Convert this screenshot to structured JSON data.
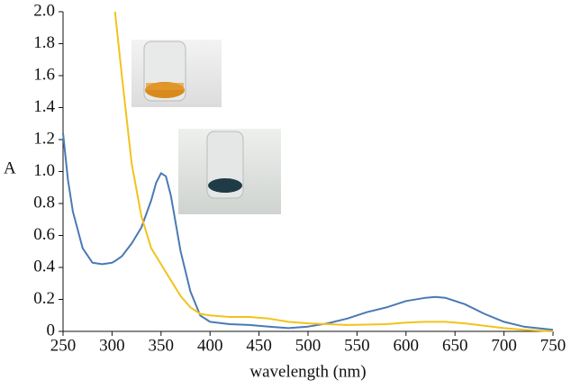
{
  "chart_data": {
    "type": "line",
    "xlabel": "wavelength (nm)",
    "ylabel": "A",
    "x": [
      250,
      255,
      260,
      270,
      280,
      290,
      300,
      303,
      310,
      320,
      330,
      340,
      345,
      350,
      355,
      360,
      370,
      380,
      390,
      400,
      420,
      440,
      460,
      480,
      500,
      520,
      540,
      560,
      580,
      600,
      620,
      630,
      640,
      660,
      680,
      700,
      720,
      750
    ],
    "series": [
      {
        "color": "#4a7ab5",
        "values": [
          1.24,
          0.95,
          0.75,
          0.52,
          0.43,
          0.42,
          0.43,
          0.44,
          0.47,
          0.55,
          0.65,
          0.82,
          0.93,
          0.99,
          0.97,
          0.85,
          0.5,
          0.25,
          0.1,
          0.06,
          0.045,
          0.04,
          0.03,
          0.02,
          0.03,
          0.05,
          0.08,
          0.12,
          0.15,
          0.19,
          0.21,
          0.215,
          0.21,
          0.17,
          0.11,
          0.06,
          0.03,
          0.01
        ]
      },
      {
        "color": "#f2c31c",
        "values": [
          null,
          null,
          null,
          null,
          null,
          null,
          null,
          2.0,
          1.6,
          1.05,
          0.72,
          0.52,
          0.47,
          0.42,
          0.37,
          0.32,
          0.22,
          0.15,
          0.11,
          0.1,
          0.09,
          0.09,
          0.08,
          0.06,
          0.05,
          0.045,
          0.04,
          0.042,
          0.045,
          0.055,
          0.06,
          0.06,
          0.06,
          0.05,
          0.035,
          0.02,
          0.01,
          0
        ]
      }
    ],
    "xlim": [
      250,
      750
    ],
    "xticks": [
      250,
      300,
      350,
      400,
      450,
      500,
      550,
      600,
      650,
      700,
      750
    ],
    "ylim": [
      0,
      2
    ],
    "yticks": [
      0,
      0.2,
      0.4,
      0.6,
      0.8,
      {
        "value": 1,
        "label": "1.0"
      },
      1.2,
      1.4,
      1.6,
      1.8,
      {
        "value": 2,
        "label": "2.0"
      }
    ]
  }
}
